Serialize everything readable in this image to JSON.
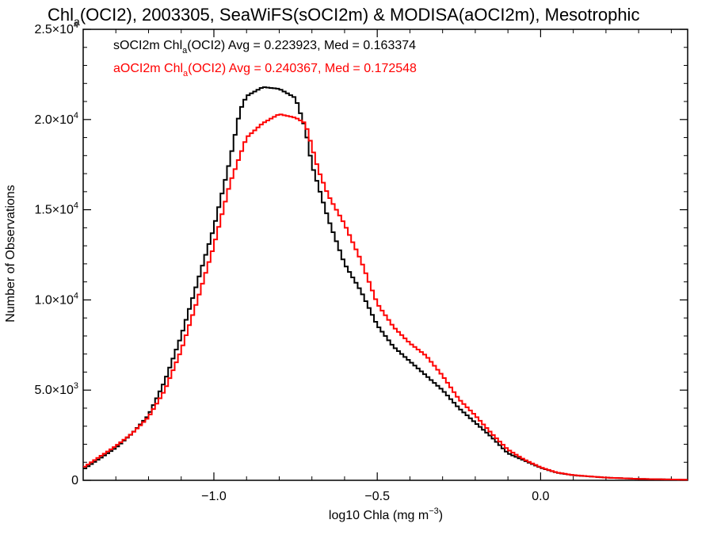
{
  "chart_data": {
    "type": "line",
    "title_parts": {
      "a": "Chl",
      "a_sub": "a",
      "b": "(OCI2), 2003305, SeaWiFS(sOCI2m) & MODISA(aOCI2m), Mesotrophic"
    },
    "xlabel_parts": {
      "a": "log10 Chla (mg m",
      "sup": "−3",
      "b": ")"
    },
    "ylabel": "Number of Observations",
    "xlim": [
      -1.4,
      0.45
    ],
    "ylim": [
      0,
      25000
    ],
    "xticks": [
      -1.0,
      -0.5,
      0.0
    ],
    "xtick_labels": [
      "−1.0",
      "−0.5",
      "0.0"
    ],
    "yticks": [
      0,
      5000,
      10000,
      15000,
      20000,
      25000
    ],
    "ytick_labels": [
      {
        "m": "0",
        "e": ""
      },
      {
        "m": "5.0×10",
        "e": "3"
      },
      {
        "m": "1.0×10",
        "e": "4"
      },
      {
        "m": "1.5×10",
        "e": "4"
      },
      {
        "m": "2.0×10",
        "e": "4"
      },
      {
        "m": "2.5×10",
        "e": "4"
      }
    ],
    "step": "histogram",
    "grid": false,
    "series": [
      {
        "name": "sOCI2m",
        "color": "#000000",
        "legend": {
          "a": "sOCI2m Chl",
          "sub": "a",
          "b": "(OCI2) Avg = 0.223923, Med = 0.163374"
        },
        "points": [
          [
            -1.4,
            600
          ],
          [
            -1.35,
            1200
          ],
          [
            -1.3,
            1800
          ],
          [
            -1.25,
            2600
          ],
          [
            -1.2,
            3600
          ],
          [
            -1.15,
            5500
          ],
          [
            -1.1,
            8000
          ],
          [
            -1.05,
            11000
          ],
          [
            -1.0,
            14000
          ],
          [
            -0.95,
            17800
          ],
          [
            -0.92,
            20500
          ],
          [
            -0.9,
            21300
          ],
          [
            -0.85,
            21800
          ],
          [
            -0.8,
            21700
          ],
          [
            -0.75,
            21200
          ],
          [
            -0.72,
            19500
          ],
          [
            -0.7,
            17500
          ],
          [
            -0.65,
            14500
          ],
          [
            -0.6,
            12000
          ],
          [
            -0.55,
            10500
          ],
          [
            -0.5,
            8600
          ],
          [
            -0.45,
            7400
          ],
          [
            -0.4,
            6600
          ],
          [
            -0.35,
            5800
          ],
          [
            -0.3,
            5000
          ],
          [
            -0.25,
            4000
          ],
          [
            -0.2,
            3200
          ],
          [
            -0.15,
            2400
          ],
          [
            -0.1,
            1500
          ],
          [
            -0.05,
            1100
          ],
          [
            0.0,
            700
          ],
          [
            0.05,
            420
          ],
          [
            0.1,
            280
          ],
          [
            0.2,
            150
          ],
          [
            0.3,
            80
          ],
          [
            0.45,
            30
          ]
        ]
      },
      {
        "name": "aOCI2m",
        "color": "#ff0000",
        "legend": {
          "a": "aOCI2m Chl",
          "sub": "a",
          "b": "(OCI2) Avg = 0.240367, Med = 0.172548"
        },
        "points": [
          [
            -1.4,
            700
          ],
          [
            -1.35,
            1300
          ],
          [
            -1.3,
            1900
          ],
          [
            -1.25,
            2600
          ],
          [
            -1.2,
            3500
          ],
          [
            -1.15,
            5000
          ],
          [
            -1.1,
            7200
          ],
          [
            -1.05,
            10000
          ],
          [
            -1.0,
            13000
          ],
          [
            -0.95,
            16500
          ],
          [
            -0.9,
            19000
          ],
          [
            -0.85,
            19800
          ],
          [
            -0.8,
            20300
          ],
          [
            -0.75,
            20100
          ],
          [
            -0.72,
            19800
          ],
          [
            -0.7,
            18500
          ],
          [
            -0.68,
            17200
          ],
          [
            -0.65,
            15800
          ],
          [
            -0.6,
            14200
          ],
          [
            -0.55,
            12200
          ],
          [
            -0.5,
            9800
          ],
          [
            -0.45,
            8500
          ],
          [
            -0.4,
            7600
          ],
          [
            -0.35,
            6900
          ],
          [
            -0.3,
            5800
          ],
          [
            -0.25,
            4500
          ],
          [
            -0.2,
            3600
          ],
          [
            -0.15,
            2600
          ],
          [
            -0.1,
            1700
          ],
          [
            -0.05,
            1150
          ],
          [
            0.0,
            720
          ],
          [
            0.05,
            430
          ],
          [
            0.1,
            290
          ],
          [
            0.2,
            150
          ],
          [
            0.3,
            80
          ],
          [
            0.45,
            30
          ]
        ]
      }
    ]
  }
}
